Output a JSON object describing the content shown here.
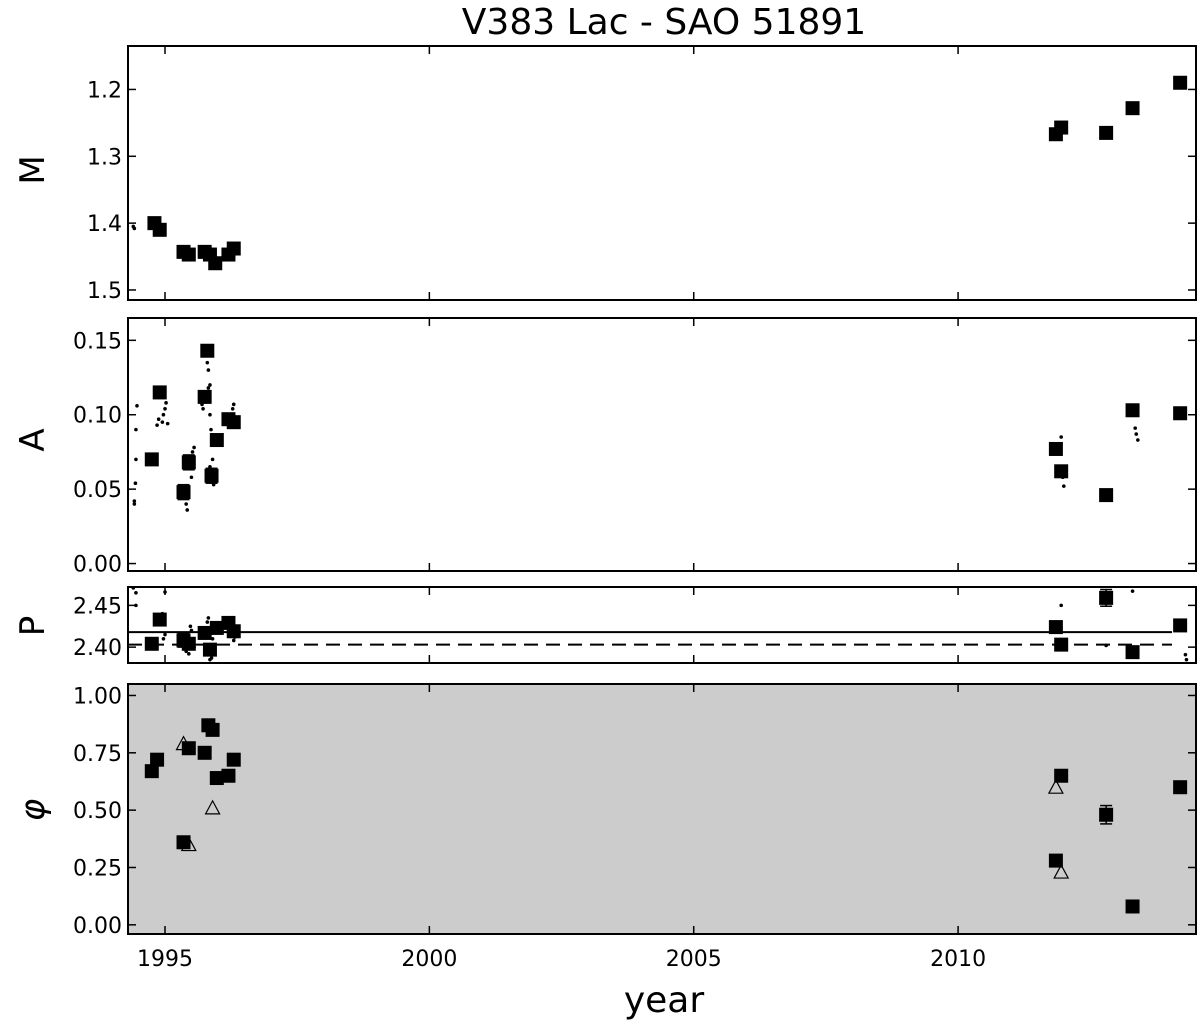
{
  "chart_data": {
    "type": "scatter",
    "title": "V383 Lac - SAO 51891",
    "xlabel": "year",
    "xlim": [
      1994.3,
      2014.5
    ],
    "xticks": [
      1995,
      2000,
      2005,
      2010
    ],
    "panels": [
      {
        "id": "M",
        "ylabel": "M",
        "ylim": [
          1.515,
          1.135
        ],
        "inverted": true,
        "yticks": [
          1.2,
          1.3,
          1.4,
          1.5
        ],
        "ytick_labels": [
          "1.2",
          "1.3",
          "1.4",
          "1.5"
        ],
        "background": "#ffffff",
        "series": [
          {
            "marker": "square",
            "points": [
              {
                "x": 1994.8,
                "y": 1.4
              },
              {
                "x": 1994.9,
                "y": 1.41
              },
              {
                "x": 1995.35,
                "y": 1.443
              },
              {
                "x": 1995.45,
                "y": 1.447
              },
              {
                "x": 1995.75,
                "y": 1.443
              },
              {
                "x": 1995.85,
                "y": 1.447
              },
              {
                "x": 1995.95,
                "y": 1.46
              },
              {
                "x": 1996.2,
                "y": 1.447
              },
              {
                "x": 1996.3,
                "y": 1.438
              },
              {
                "x": 2011.85,
                "y": 1.267
              },
              {
                "x": 2011.95,
                "y": 1.257
              },
              {
                "x": 2012.8,
                "y": 1.265
              },
              {
                "x": 2013.3,
                "y": 1.228
              },
              {
                "x": 2014.2,
                "y": 1.19
              }
            ]
          },
          {
            "marker": "dot",
            "points": [
              {
                "x": 1994.4,
                "y": 1.405
              },
              {
                "x": 1994.42,
                "y": 1.408
              }
            ]
          }
        ]
      },
      {
        "id": "A",
        "ylabel": "A",
        "ylim": [
          -0.005,
          0.165
        ],
        "inverted": false,
        "yticks": [
          0.0,
          0.05,
          0.1,
          0.15
        ],
        "ytick_labels": [
          "0.00",
          "0.05",
          "0.10",
          "0.15"
        ],
        "background": "#ffffff",
        "series": [
          {
            "marker": "square",
            "points": [
              {
                "x": 1994.75,
                "y": 0.07
              },
              {
                "x": 1994.9,
                "y": 0.115,
                "err": 0.004
              },
              {
                "x": 1995.35,
                "y": 0.048,
                "err": 0.005
              },
              {
                "x": 1995.45,
                "y": 0.068,
                "err": 0.005
              },
              {
                "x": 1995.75,
                "y": 0.112,
                "err": 0.004
              },
              {
                "x": 1995.8,
                "y": 0.143,
                "err": 0.004
              },
              {
                "x": 1995.88,
                "y": 0.059,
                "err": 0.005
              },
              {
                "x": 1995.98,
                "y": 0.083
              },
              {
                "x": 1996.2,
                "y": 0.097,
                "err": 0.004
              },
              {
                "x": 1996.3,
                "y": 0.095,
                "err": 0.004
              },
              {
                "x": 2011.85,
                "y": 0.077
              },
              {
                "x": 2011.95,
                "y": 0.062,
                "err": 0.004
              },
              {
                "x": 2012.8,
                "y": 0.046
              },
              {
                "x": 2013.3,
                "y": 0.103,
                "err": 0.003
              },
              {
                "x": 2014.2,
                "y": 0.101,
                "err": 0.004
              }
            ]
          },
          {
            "marker": "dot",
            "points": [
              {
                "x": 1994.42,
                "y": 0.04
              },
              {
                "x": 1994.42,
                "y": 0.042
              },
              {
                "x": 1994.44,
                "y": 0.054
              },
              {
                "x": 1994.45,
                "y": 0.07
              },
              {
                "x": 1994.45,
                "y": 0.09
              },
              {
                "x": 1994.47,
                "y": 0.106
              },
              {
                "x": 1994.85,
                "y": 0.093
              },
              {
                "x": 1994.88,
                "y": 0.097
              },
              {
                "x": 1994.95,
                "y": 0.095
              },
              {
                "x": 1994.97,
                "y": 0.1
              },
              {
                "x": 1995.0,
                "y": 0.104
              },
              {
                "x": 1995.02,
                "y": 0.108
              },
              {
                "x": 1995.05,
                "y": 0.094
              },
              {
                "x": 1995.4,
                "y": 0.04
              },
              {
                "x": 1995.42,
                "y": 0.036
              },
              {
                "x": 1995.5,
                "y": 0.058
              },
              {
                "x": 1995.52,
                "y": 0.075
              },
              {
                "x": 1995.55,
                "y": 0.078
              },
              {
                "x": 1995.7,
                "y": 0.107
              },
              {
                "x": 1995.72,
                "y": 0.104
              },
              {
                "x": 1995.8,
                "y": 0.112
              },
              {
                "x": 1995.82,
                "y": 0.118
              },
              {
                "x": 1995.85,
                "y": 0.12
              },
              {
                "x": 1995.82,
                "y": 0.13
              },
              {
                "x": 1995.8,
                "y": 0.135
              },
              {
                "x": 1995.85,
                "y": 0.1
              },
              {
                "x": 1995.87,
                "y": 0.09
              },
              {
                "x": 1995.9,
                "y": 0.07
              },
              {
                "x": 1995.92,
                "y": 0.053
              },
              {
                "x": 1995.85,
                "y": 0.065
              },
              {
                "x": 1996.25,
                "y": 0.1
              },
              {
                "x": 1996.28,
                "y": 0.104
              },
              {
                "x": 1996.3,
                "y": 0.107
              },
              {
                "x": 1996.33,
                "y": 0.093
              },
              {
                "x": 2011.95,
                "y": 0.085
              },
              {
                "x": 2011.98,
                "y": 0.058
              },
              {
                "x": 2012.0,
                "y": 0.052
              },
              {
                "x": 2013.35,
                "y": 0.091
              },
              {
                "x": 2013.37,
                "y": 0.087
              },
              {
                "x": 2013.4,
                "y": 0.083
              }
            ]
          }
        ]
      },
      {
        "id": "P",
        "ylabel": "P",
        "ylim": [
          2.381,
          2.472
        ],
        "inverted": false,
        "yticks": [
          2.4,
          2.45
        ],
        "ytick_labels": [
          "2.40",
          "2.45"
        ],
        "background": "#ffffff",
        "hlines": [
          {
            "y": 2.418,
            "style": "solid"
          },
          {
            "y": 2.403,
            "style": "dashed"
          }
        ],
        "series": [
          {
            "marker": "square",
            "points": [
              {
                "x": 1994.75,
                "y": 2.404
              },
              {
                "x": 1994.9,
                "y": 2.433
              },
              {
                "x": 1995.35,
                "y": 2.408,
                "err": 0.008
              },
              {
                "x": 1995.45,
                "y": 2.404,
                "err": 0.005
              },
              {
                "x": 1995.75,
                "y": 2.417
              },
              {
                "x": 1995.85,
                "y": 2.397,
                "err": 0.006
              },
              {
                "x": 1995.98,
                "y": 2.423,
                "err": 0.004
              },
              {
                "x": 1996.2,
                "y": 2.429
              },
              {
                "x": 1996.3,
                "y": 2.419,
                "err": 0.004
              },
              {
                "x": 2011.85,
                "y": 2.424
              },
              {
                "x": 2011.95,
                "y": 2.403
              },
              {
                "x": 2012.8,
                "y": 2.459,
                "err": 0.01
              },
              {
                "x": 2013.3,
                "y": 2.394
              },
              {
                "x": 2014.2,
                "y": 2.426
              }
            ]
          },
          {
            "marker": "dot",
            "points": [
              {
                "x": 1994.4,
                "y": 2.471
              },
              {
                "x": 1994.45,
                "y": 2.465
              },
              {
                "x": 1994.45,
                "y": 2.45
              },
              {
                "x": 1995.0,
                "y": 2.466
              },
              {
                "x": 1994.95,
                "y": 2.44
              },
              {
                "x": 1995.0,
                "y": 2.415
              },
              {
                "x": 1994.97,
                "y": 2.41
              },
              {
                "x": 1995.4,
                "y": 2.395
              },
              {
                "x": 1995.45,
                "y": 2.392
              },
              {
                "x": 1995.5,
                "y": 2.42
              },
              {
                "x": 1995.48,
                "y": 2.425
              },
              {
                "x": 1995.55,
                "y": 2.4
              },
              {
                "x": 1995.8,
                "y": 2.43
              },
              {
                "x": 1995.82,
                "y": 2.435
              },
              {
                "x": 1995.85,
                "y": 2.385
              },
              {
                "x": 1995.88,
                "y": 2.387
              },
              {
                "x": 1995.9,
                "y": 2.41
              },
              {
                "x": 1995.8,
                "y": 2.42
              },
              {
                "x": 1996.3,
                "y": 2.408
              },
              {
                "x": 1996.32,
                "y": 2.412
              },
              {
                "x": 1996.28,
                "y": 2.425
              },
              {
                "x": 2011.95,
                "y": 2.45
              },
              {
                "x": 2012.8,
                "y": 2.402
              },
              {
                "x": 2013.3,
                "y": 2.467
              },
              {
                "x": 2014.3,
                "y": 2.391
              },
              {
                "x": 2014.32,
                "y": 2.385
              }
            ]
          }
        ]
      },
      {
        "id": "phi",
        "ylabel": "φ",
        "ylim": [
          -0.04,
          1.05
        ],
        "inverted": false,
        "yticks": [
          0.0,
          0.25,
          0.5,
          0.75,
          1.0
        ],
        "ytick_labels": [
          "0.00",
          "0.25",
          "0.50",
          "0.75",
          "1.00"
        ],
        "background": "#cccccc",
        "series": [
          {
            "marker": "square",
            "points": [
              {
                "x": 1994.75,
                "y": 0.67
              },
              {
                "x": 1994.85,
                "y": 0.72
              },
              {
                "x": 1995.35,
                "y": 0.36
              },
              {
                "x": 1995.45,
                "y": 0.77
              },
              {
                "x": 1995.75,
                "y": 0.75
              },
              {
                "x": 1995.82,
                "y": 0.87
              },
              {
                "x": 1995.9,
                "y": 0.85
              },
              {
                "x": 1995.98,
                "y": 0.64
              },
              {
                "x": 1996.2,
                "y": 0.65
              },
              {
                "x": 1996.3,
                "y": 0.72
              },
              {
                "x": 2011.85,
                "y": 0.28
              },
              {
                "x": 2011.95,
                "y": 0.65
              },
              {
                "x": 2012.8,
                "y": 0.48,
                "err": 0.04
              },
              {
                "x": 2013.3,
                "y": 0.08
              },
              {
                "x": 2014.2,
                "y": 0.6
              }
            ]
          },
          {
            "marker": "triangle",
            "points": [
              {
                "x": 1995.35,
                "y": 0.79
              },
              {
                "x": 1995.45,
                "y": 0.35
              },
              {
                "x": 1995.9,
                "y": 0.51
              },
              {
                "x": 2011.85,
                "y": 0.6
              },
              {
                "x": 2011.95,
                "y": 0.23
              }
            ]
          }
        ]
      }
    ]
  }
}
